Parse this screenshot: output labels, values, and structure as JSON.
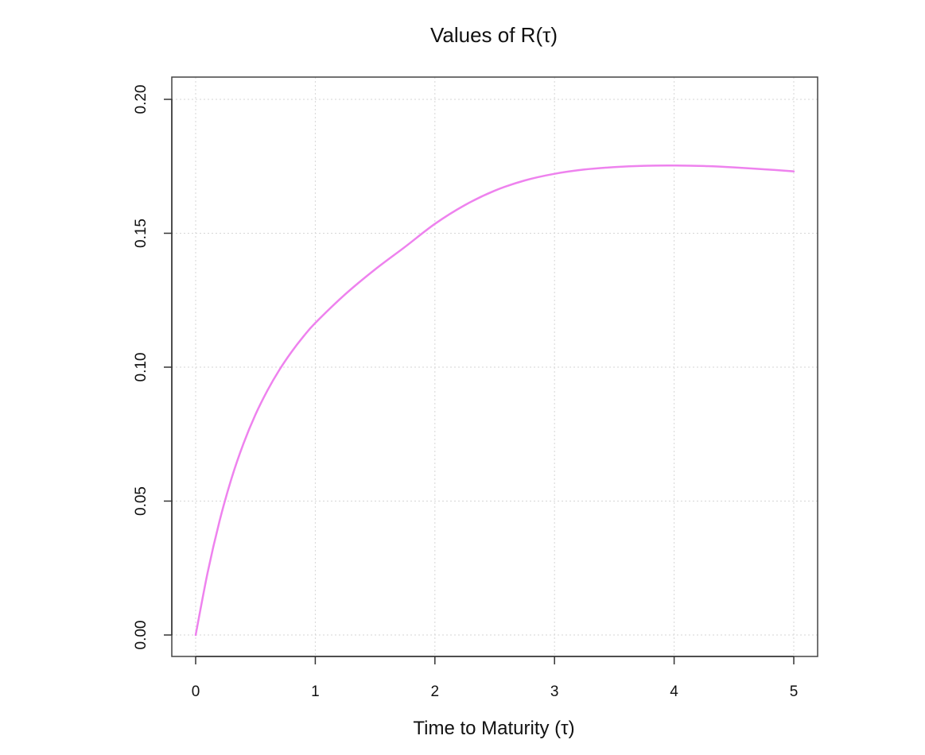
{
  "chart_data": {
    "type": "line",
    "title": "Values of R(τ)",
    "xlabel": "Time to Maturity (τ)",
    "ylabel": "",
    "xlim": [
      0,
      5
    ],
    "ylim": [
      0,
      0.2
    ],
    "x_ticks": [
      0,
      1,
      2,
      3,
      4,
      5
    ],
    "x_tick_labels": [
      "0",
      "1",
      "2",
      "3",
      "4",
      "5"
    ],
    "y_ticks": [
      0,
      0.05,
      0.1,
      0.15,
      0.2
    ],
    "y_tick_labels": [
      "0.00",
      "0.05",
      "0.10",
      "0.15",
      "0.20"
    ],
    "grid": true,
    "legend": "none",
    "series": [
      {
        "color": "#ee82ee",
        "x": [
          0,
          0.1,
          0.2,
          0.3,
          0.4,
          0.5,
          0.6,
          0.7,
          0.8,
          0.9,
          1.0,
          1.25,
          1.5,
          1.75,
          2.0,
          2.25,
          2.5,
          2.75,
          3.0,
          3.25,
          3.5,
          3.75,
          4.0,
          4.25,
          4.5,
          4.75,
          5.0
        ],
        "y": [
          0.0,
          0.0233,
          0.0426,
          0.0585,
          0.0715,
          0.0823,
          0.0913,
          0.099,
          0.1056,
          0.1114,
          0.1165,
          0.1272,
          0.1365,
          0.1449,
          0.1535,
          0.1605,
          0.1659,
          0.1697,
          0.1722,
          0.1738,
          0.1747,
          0.1752,
          0.1753,
          0.1751,
          0.1746,
          0.1739,
          0.1731
        ]
      }
    ]
  }
}
